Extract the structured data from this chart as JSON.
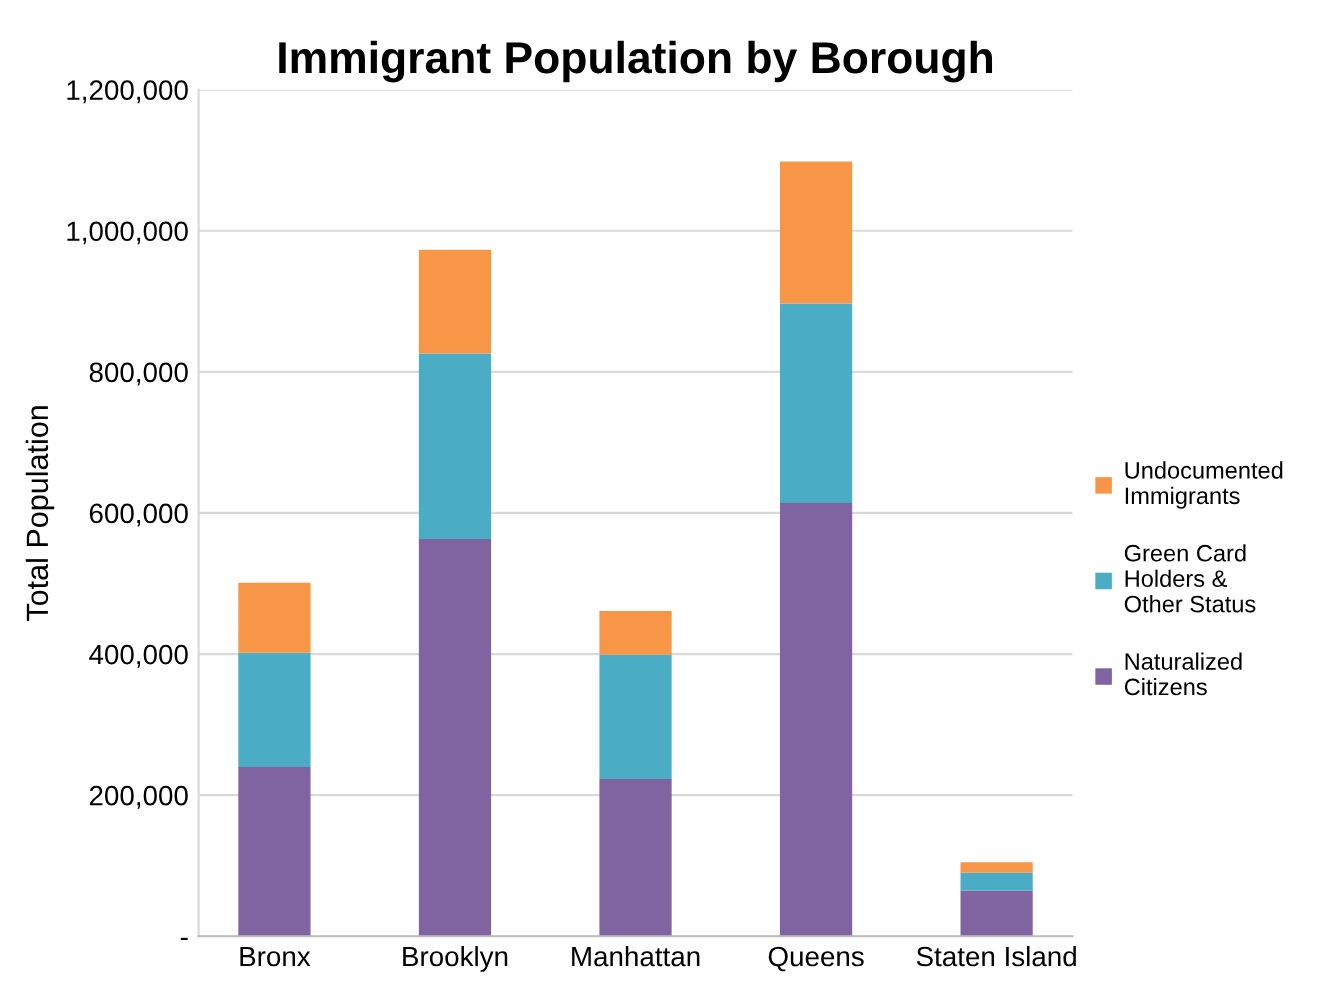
{
  "chart_data": {
    "type": "bar",
    "stacked": true,
    "title": "Immigrant Population by Borough",
    "ylabel": "Total Population",
    "categories": [
      "Bronx",
      "Brooklyn",
      "Manhattan",
      "Queens",
      "Staten Island"
    ],
    "series": [
      {
        "name": "Naturalized\nCitizens",
        "color": "#8064a2",
        "values": [
          240000,
          563000,
          223000,
          614000,
          65000
        ]
      },
      {
        "name": "Green Card\nHolders &\nOther Status",
        "color": "#4bacc6",
        "values": [
          162000,
          263000,
          176000,
          283000,
          25000
        ]
      },
      {
        "name": "Undocumented\nImmigrants",
        "color": "#f79646",
        "values": [
          99000,
          147000,
          62000,
          201000,
          15000
        ]
      }
    ],
    "ylim": [
      0,
      1200000
    ],
    "yticks": [
      {
        "value": 0,
        "label": "-"
      },
      {
        "value": 200000,
        "label": "200,000"
      },
      {
        "value": 400000,
        "label": "400,000"
      },
      {
        "value": 600000,
        "label": "600,000"
      },
      {
        "value": 800000,
        "label": "800,000"
      },
      {
        "value": 1000000,
        "label": "1,000,000"
      },
      {
        "value": 1200000,
        "label": "1,200,000"
      }
    ],
    "grid": "y",
    "legend": "right"
  }
}
